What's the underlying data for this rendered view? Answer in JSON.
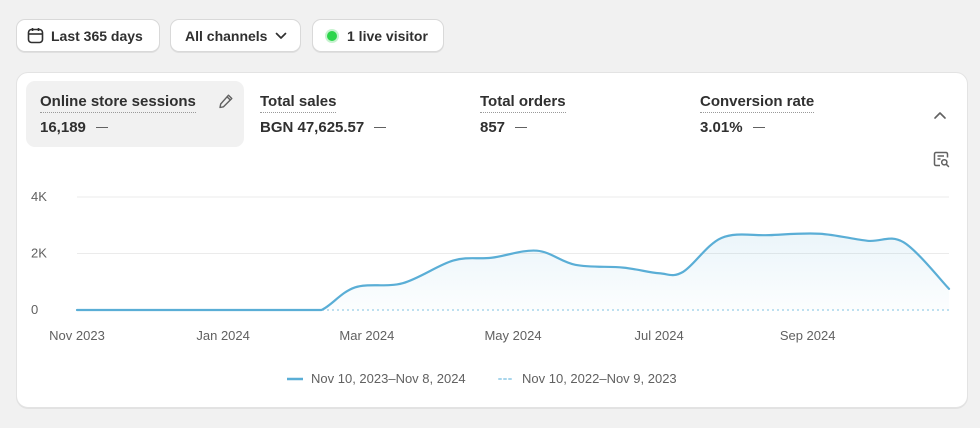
{
  "toolbar": {
    "date_range": "Last 365 days",
    "channels": "All channels",
    "live_visitors": "1 live visitor"
  },
  "metrics": [
    {
      "label": "Online store sessions",
      "value": "16,189",
      "active": true
    },
    {
      "label": "Total sales",
      "value": "BGN 47,625.57"
    },
    {
      "label": "Total orders",
      "value": "857"
    },
    {
      "label": "Conversion rate",
      "value": "3.01%"
    }
  ],
  "icons": {
    "date": "calendar-icon",
    "channels": "chevron-down-icon",
    "live": "live-dot-icon",
    "edit": "pencil-icon",
    "collapse": "chevron-up-icon",
    "insight": "chart-search-icon"
  },
  "colors": {
    "series_current": "#5aaed6",
    "series_previous": "#a9d6ec",
    "live": "#2cd54b"
  },
  "chart_data": {
    "type": "area",
    "y_ticks": [
      "4K",
      "2K",
      "0"
    ],
    "ylim": [
      0,
      4000
    ],
    "x_ticks": [
      "Nov 2023",
      "Jan 2024",
      "Mar 2024",
      "May 2024",
      "Jul 2024",
      "Sep 2024"
    ],
    "grid": true,
    "legend_position": "bottom",
    "series": [
      {
        "name": "Nov 10, 2023–Nov 8, 2024",
        "style": "solid",
        "x": [
          "2023-11-10",
          "2023-12-10",
          "2024-01-10",
          "2024-02-10",
          "2024-02-20",
          "2024-03-05",
          "2024-03-25",
          "2024-04-15",
          "2024-05-01",
          "2024-05-20",
          "2024-06-05",
          "2024-06-25",
          "2024-07-10",
          "2024-07-20",
          "2024-08-05",
          "2024-08-25",
          "2024-09-15",
          "2024-10-05",
          "2024-10-20",
          "2024-11-08"
        ],
        "values": [
          0,
          0,
          0,
          0,
          0,
          800,
          950,
          1750,
          1850,
          2100,
          1600,
          1500,
          1300,
          1350,
          2550,
          2650,
          2700,
          2450,
          2400,
          750
        ]
      },
      {
        "name": "Nov 10, 2022–Nov 9, 2023",
        "style": "dotted",
        "values": [
          0,
          0,
          0,
          0,
          0,
          0,
          0,
          0,
          0,
          0,
          0,
          0,
          0,
          0,
          0,
          0,
          0,
          0,
          0,
          0
        ]
      }
    ]
  }
}
